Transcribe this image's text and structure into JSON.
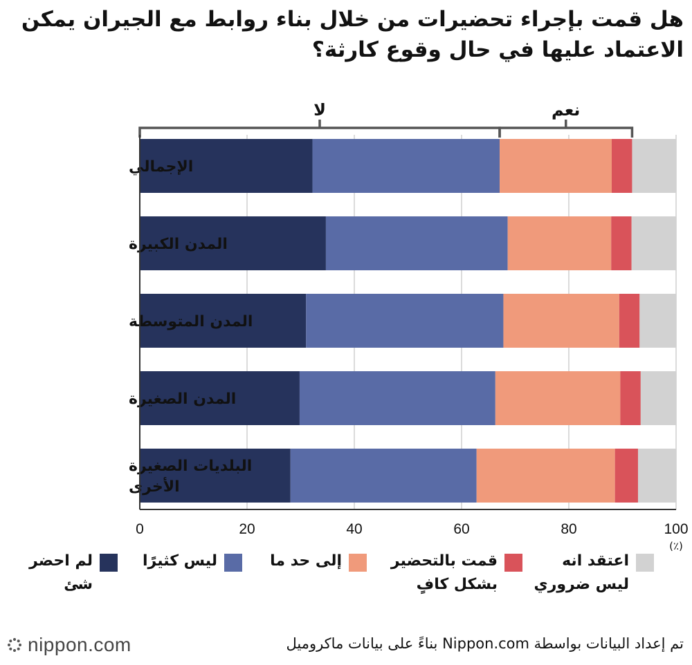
{
  "title_lines": [
    "هل قمت بإجراء تحضيرات من خلال بناء روابط مع الجيران يمكن",
    "الاعتماد عليها في حال وقوع كارثة؟"
  ],
  "bracket_labels": {
    "no": "لا",
    "yes": "نعم"
  },
  "unit_label": "(٪)",
  "source": "تم إعداد البيانات بواسطة Nippon.com بناءً على بيانات ماكروميل",
  "logo_text": "nippon.com",
  "chart_data": {
    "type": "bar",
    "orientation": "horizontal-stacked",
    "categories": [
      [
        "الإجمالي"
      ],
      [
        "المدن الكبيرة"
      ],
      [
        "المدن المتوسطة"
      ],
      [
        "المدن الصغيرة"
      ],
      [
        "البلديات الصغيرة",
        "الأخرى"
      ]
    ],
    "series": [
      {
        "name": "لم احضر شئ",
        "label_lines": [
          "لم احضر",
          "شئ"
        ],
        "color": "#26335c",
        "values": [
          32.2,
          34.7,
          31.0,
          29.8,
          28.1
        ]
      },
      {
        "name": "ليس كثيرًا",
        "label_lines": [
          "ليس كثيرًا"
        ],
        "color": "#596ba6",
        "values": [
          34.9,
          33.9,
          36.8,
          36.5,
          34.7
        ]
      },
      {
        "name": "إلى حد ما",
        "label_lines": [
          "إلى حد ما"
        ],
        "color": "#f09a7b",
        "values": [
          20.9,
          19.3,
          21.6,
          23.3,
          25.8
        ]
      },
      {
        "name": "قمت بالتحضير بشكل كافٍ",
        "label_lines": [
          "قمت بالتحضير",
          "بشكل كافٍ"
        ],
        "color": "#d9535a",
        "values": [
          3.8,
          3.8,
          3.8,
          3.8,
          4.3
        ]
      },
      {
        "name": "اعتقد انه ليس ضروري",
        "label_lines": [
          "اعتقد انه",
          "ليس ضروري"
        ],
        "color": "#d2d2d2",
        "values": [
          8.2,
          8.3,
          6.8,
          6.6,
          7.1
        ]
      }
    ],
    "xlim": [
      0,
      100
    ],
    "x_ticks": [
      "0",
      "20",
      "40",
      "60",
      "80",
      "100"
    ],
    "grid": true,
    "legend": "bottom"
  }
}
